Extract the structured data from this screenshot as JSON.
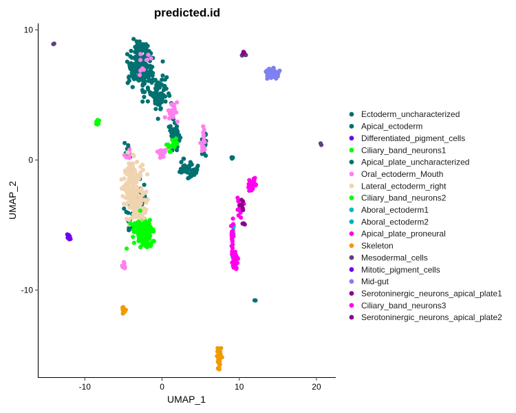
{
  "chart_data": {
    "type": "scatter",
    "title": "predicted.id",
    "xlabel": "UMAP_1",
    "ylabel": "UMAP_2",
    "xlim": [
      -16,
      22.5
    ],
    "ylim": [
      -16.7,
      10.5
    ],
    "xticks": [
      -10,
      0,
      10,
      20
    ],
    "yticks": [
      -10,
      0,
      10
    ],
    "xtick_labels": [
      "-10",
      "0",
      "10",
      "20"
    ],
    "ytick_labels": [
      "-10",
      "0",
      "10"
    ],
    "legend_position": "right",
    "grid": false,
    "series": [
      {
        "name": "Ectoderm_uncharacterized",
        "color": "#007070",
        "clusters": [
          {
            "cx": -3,
            "cy": 7.2,
            "rx": 1.4,
            "ry": 1.4,
            "n": 140
          },
          {
            "cx": -2.6,
            "cy": 8.6,
            "rx": 0.9,
            "ry": 0.5,
            "n": 40
          },
          {
            "cx": -0.3,
            "cy": 5.2,
            "rx": 1.0,
            "ry": 1.4,
            "n": 70
          },
          {
            "cx": 1.6,
            "cy": 2.0,
            "rx": 0.7,
            "ry": 1.0,
            "n": 45
          },
          {
            "cx": 3.5,
            "cy": -0.6,
            "rx": 1.1,
            "ry": 0.6,
            "n": 45
          },
          {
            "cx": -4.0,
            "cy": -3.0,
            "rx": 0.5,
            "ry": 1.0,
            "n": 20
          },
          {
            "cx": -2.8,
            "cy": -2.4,
            "rx": 0.6,
            "ry": 1.0,
            "n": 20
          },
          {
            "cx": -4.3,
            "cy": -4.6,
            "rx": 0.5,
            "ry": 1.0,
            "n": 15
          },
          {
            "cx": -4.4,
            "cy": 0.6,
            "rx": 0.4,
            "ry": 0.6,
            "n": 15
          }
        ]
      },
      {
        "name": "Apical_ectoderm",
        "color": "#007070",
        "clusters": [
          {
            "cx": 5.5,
            "cy": 1.2,
            "rx": 0.3,
            "ry": 0.9,
            "n": 15
          },
          {
            "cx": 9.1,
            "cy": 0.2,
            "rx": 0.2,
            "ry": 0.1,
            "n": 5
          },
          {
            "cx": 12.0,
            "cy": -10.8,
            "rx": 0.1,
            "ry": 0.1,
            "n": 2
          }
        ]
      },
      {
        "name": "Differentiated_pigment_cells",
        "color": "#7000ee",
        "clusters": [
          {
            "cx": -12.0,
            "cy": -6.0,
            "rx": 0.3,
            "ry": 0.3,
            "n": 6
          }
        ]
      },
      {
        "name": "Ciliary_band_neurons1",
        "color": "#00ff00",
        "clusters": [
          {
            "cx": -2.2,
            "cy": -5.7,
            "rx": 1.0,
            "ry": 0.8,
            "n": 150
          },
          {
            "cx": -8.3,
            "cy": 2.9,
            "rx": 0.3,
            "ry": 0.3,
            "n": 12
          }
        ]
      },
      {
        "name": "Apical_plate_uncharacterized",
        "color": "#007070",
        "clusters": [
          {
            "cx": -1.8,
            "cy": 6.3,
            "rx": 0.8,
            "ry": 1.5,
            "n": 40
          }
        ]
      },
      {
        "name": "Oral_ectoderm_Mouth",
        "color": "#ff80ee",
        "clusters": [
          {
            "cx": -0.1,
            "cy": 0.5,
            "rx": 0.7,
            "ry": 0.5,
            "n": 20
          },
          {
            "cx": 1.4,
            "cy": 3.6,
            "rx": 0.7,
            "ry": 0.8,
            "n": 25
          },
          {
            "cx": 5.4,
            "cy": 1.5,
            "rx": 0.3,
            "ry": 0.9,
            "n": 15
          },
          {
            "cx": -5.0,
            "cy": -8.1,
            "rx": 0.15,
            "ry": 0.5,
            "n": 10
          },
          {
            "cx": -2.5,
            "cy": 7.5,
            "rx": 0.9,
            "ry": 1.0,
            "n": 10
          },
          {
            "cx": -4.5,
            "cy": 0.2,
            "rx": 0.5,
            "ry": 0.8,
            "n": 8
          }
        ]
      },
      {
        "name": "Lateral_ectoderm_right",
        "color": "#f0d4b0",
        "clusters": [
          {
            "cx": -3.6,
            "cy": -2.2,
            "rx": 1.3,
            "ry": 1.8,
            "n": 170
          },
          {
            "cx": -3.0,
            "cy": -4.0,
            "rx": 0.9,
            "ry": 0.9,
            "n": 50
          }
        ]
      },
      {
        "name": "Ciliary_band_neurons2",
        "color": "#00ff00",
        "clusters": [
          {
            "cx": -3.0,
            "cy": -5.2,
            "rx": 1.2,
            "ry": 1.0,
            "n": 30
          },
          {
            "cx": 1.3,
            "cy": 1.2,
            "rx": 0.6,
            "ry": 0.6,
            "n": 15
          }
        ]
      },
      {
        "name": "Aboral_ectoderm1",
        "color": "#00bbc4",
        "clusters": [
          {
            "cx": 9.2,
            "cy": -5.5,
            "rx": 0.2,
            "ry": 0.4,
            "n": 4
          }
        ]
      },
      {
        "name": "Aboral_ectoderm2",
        "color": "#00aec4",
        "clusters": [
          {
            "cx": 9.2,
            "cy": -7.5,
            "rx": 0.2,
            "ry": 0.3,
            "n": 4
          }
        ]
      },
      {
        "name": "Apical_plate_proneural",
        "color": "#ff00ee",
        "clusters": [
          {
            "cx": 9.4,
            "cy": -7.8,
            "rx": 0.35,
            "ry": 0.6,
            "n": 45
          },
          {
            "cx": 9.1,
            "cy": -5.9,
            "rx": 0.15,
            "ry": 1.0,
            "n": 25
          },
          {
            "cx": 10.2,
            "cy": -3.6,
            "rx": 0.4,
            "ry": 0.7,
            "n": 20
          },
          {
            "cx": 11.5,
            "cy": -2.0,
            "rx": 0.5,
            "ry": 0.5,
            "n": 20
          }
        ]
      },
      {
        "name": "Skeleton",
        "color": "#f09a00",
        "clusters": [
          {
            "cx": 7.4,
            "cy": -15.3,
            "rx": 0.25,
            "ry": 0.9,
            "n": 30
          },
          {
            "cx": -4.9,
            "cy": -11.5,
            "rx": 0.25,
            "ry": 0.4,
            "n": 10
          }
        ]
      },
      {
        "name": "Mesodermal_cells",
        "color": "#5f3f80",
        "clusters": [
          {
            "cx": 10.6,
            "cy": 8.1,
            "rx": 0.2,
            "ry": 0.1,
            "n": 5
          },
          {
            "cx": -14.0,
            "cy": 9.0,
            "rx": 0.1,
            "ry": 0.1,
            "n": 2
          },
          {
            "cx": 20.6,
            "cy": 1.2,
            "rx": 0.1,
            "ry": 0.1,
            "n": 2
          }
        ]
      },
      {
        "name": "Mitotic_pigment_cells",
        "color": "#7000ee",
        "clusters": [
          {
            "cx": -12.0,
            "cy": -6.1,
            "rx": 0.2,
            "ry": 0.2,
            "n": 4
          }
        ]
      },
      {
        "name": "Mid-gut",
        "color": "#8080ee",
        "clusters": [
          {
            "cx": 14.3,
            "cy": 6.6,
            "rx": 0.8,
            "ry": 0.4,
            "n": 40
          }
        ]
      },
      {
        "name": "Serotoninergic_neurons_apical_plate1",
        "color": "#8b008b",
        "clusters": [
          {
            "cx": 10.4,
            "cy": -3.4,
            "rx": 0.3,
            "ry": 0.4,
            "n": 8
          },
          {
            "cx": 10.7,
            "cy": -4.9,
            "rx": 0.3,
            "ry": 0.1,
            "n": 4
          }
        ]
      },
      {
        "name": "Ciliary_band_neurons3",
        "color": "#ff00ee",
        "clusters": [
          {
            "cx": 11.8,
            "cy": -1.7,
            "rx": 0.3,
            "ry": 0.3,
            "n": 10
          }
        ]
      },
      {
        "name": "Serotoninergic_neurons_apical_plate2",
        "color": "#8b008b",
        "clusters": [
          {
            "cx": 10.6,
            "cy": 8.2,
            "rx": 0.1,
            "ry": 0.1,
            "n": 3
          }
        ]
      }
    ]
  }
}
